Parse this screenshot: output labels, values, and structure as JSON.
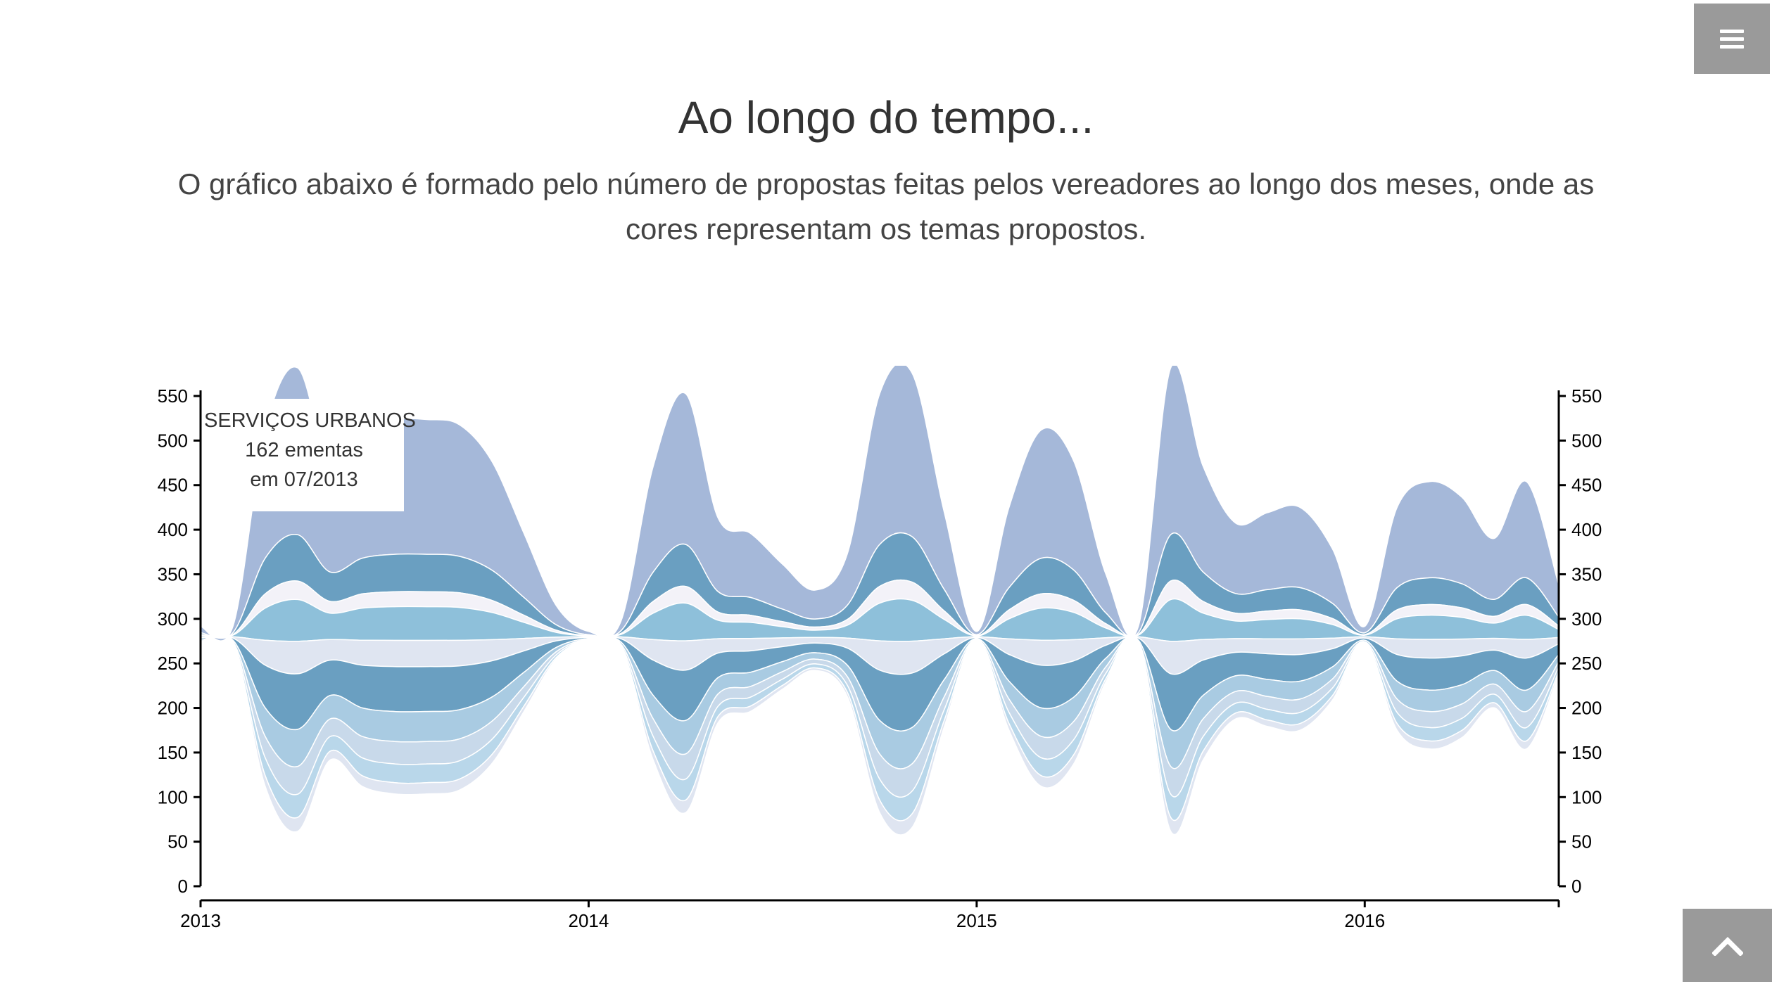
{
  "page": {
    "heading": "Ao longo do tempo...",
    "subtitle": "O gráfico abaixo é formado pelo número de propostas feitas pelos vereadores ao longo dos meses, onde as cores representam os temas propostos."
  },
  "nav": {
    "menu_icon": "hamburger-icon",
    "back_to_top_icon": "chevron-up-icon"
  },
  "tooltip": {
    "theme": "SERVIÇOS URBANOS",
    "count": "162 ementas",
    "date": "em 07/2013"
  },
  "colors": {
    "palette": [
      "#a5b8d9",
      "#6a9fc1",
      "#8ec0da",
      "#a9cbe2",
      "#f3f2f8",
      "#dfe5f1",
      "#c8d9ea",
      "#b9d7ea"
    ],
    "axis": "#000000",
    "buttons": "#9a9a9a"
  },
  "chart_data": {
    "type": "area",
    "subtype": "streamgraph",
    "x_ticks": [
      "2013",
      "2014",
      "2015",
      "2016"
    ],
    "y_ticks": [
      0,
      50,
      100,
      150,
      200,
      250,
      300,
      350,
      400,
      450,
      500,
      550
    ],
    "ylim": [
      0,
      550
    ],
    "xlim": [
      "2013-01",
      "2016-07"
    ],
    "dual_y_axis": true,
    "grid": false,
    "months": [
      "2013-01",
      "2013-02",
      "2013-03",
      "2013-04",
      "2013-05",
      "2013-06",
      "2013-07",
      "2013-08",
      "2013-09",
      "2013-10",
      "2013-11",
      "2013-12",
      "2014-01",
      "2014-02",
      "2014-03",
      "2014-04",
      "2014-05",
      "2014-06",
      "2014-07",
      "2014-08",
      "2014-09",
      "2014-10",
      "2014-11",
      "2014-12",
      "2015-01",
      "2015-02",
      "2015-03",
      "2015-04",
      "2015-05",
      "2015-06",
      "2015-07",
      "2015-08",
      "2015-09",
      "2015-10",
      "2015-11",
      "2015-12",
      "2016-01",
      "2016-02",
      "2016-03",
      "2016-04",
      "2016-05",
      "2016-06",
      "2016-07"
    ],
    "baseline_center": 280,
    "totals": [
      20,
      20,
      400,
      520,
      330,
      400,
      420,
      420,
      410,
      340,
      200,
      60,
      10,
      30,
      330,
      470,
      230,
      200,
      140,
      90,
      160,
      470,
      510,
      240,
      10,
      250,
      400,
      340,
      120,
      20,
      520,
      330,
      220,
      240,
      250,
      170,
      20,
      250,
      300,
      270,
      190,
      300,
      100
    ],
    "series": [
      {
        "share": 0.36,
        "color": "#a5b8d9"
      },
      {
        "share": 0.1,
        "color": "#6a9fc1"
      },
      {
        "share": 0.04,
        "color": "#f3f2f8"
      },
      {
        "share": 0.09,
        "color": "#8ec0da"
      },
      {
        "share": 0.07,
        "color": "#dfe5f1"
      },
      {
        "share": 0.12,
        "color": "#6a9fc1"
      },
      {
        "share": 0.08,
        "color": "#a9cbe2"
      },
      {
        "share": 0.06,
        "color": "#c8d9ea"
      },
      {
        "share": 0.05,
        "color": "#b9d7ea"
      },
      {
        "share": 0.03,
        "color": "#dfe5f1"
      }
    ]
  }
}
